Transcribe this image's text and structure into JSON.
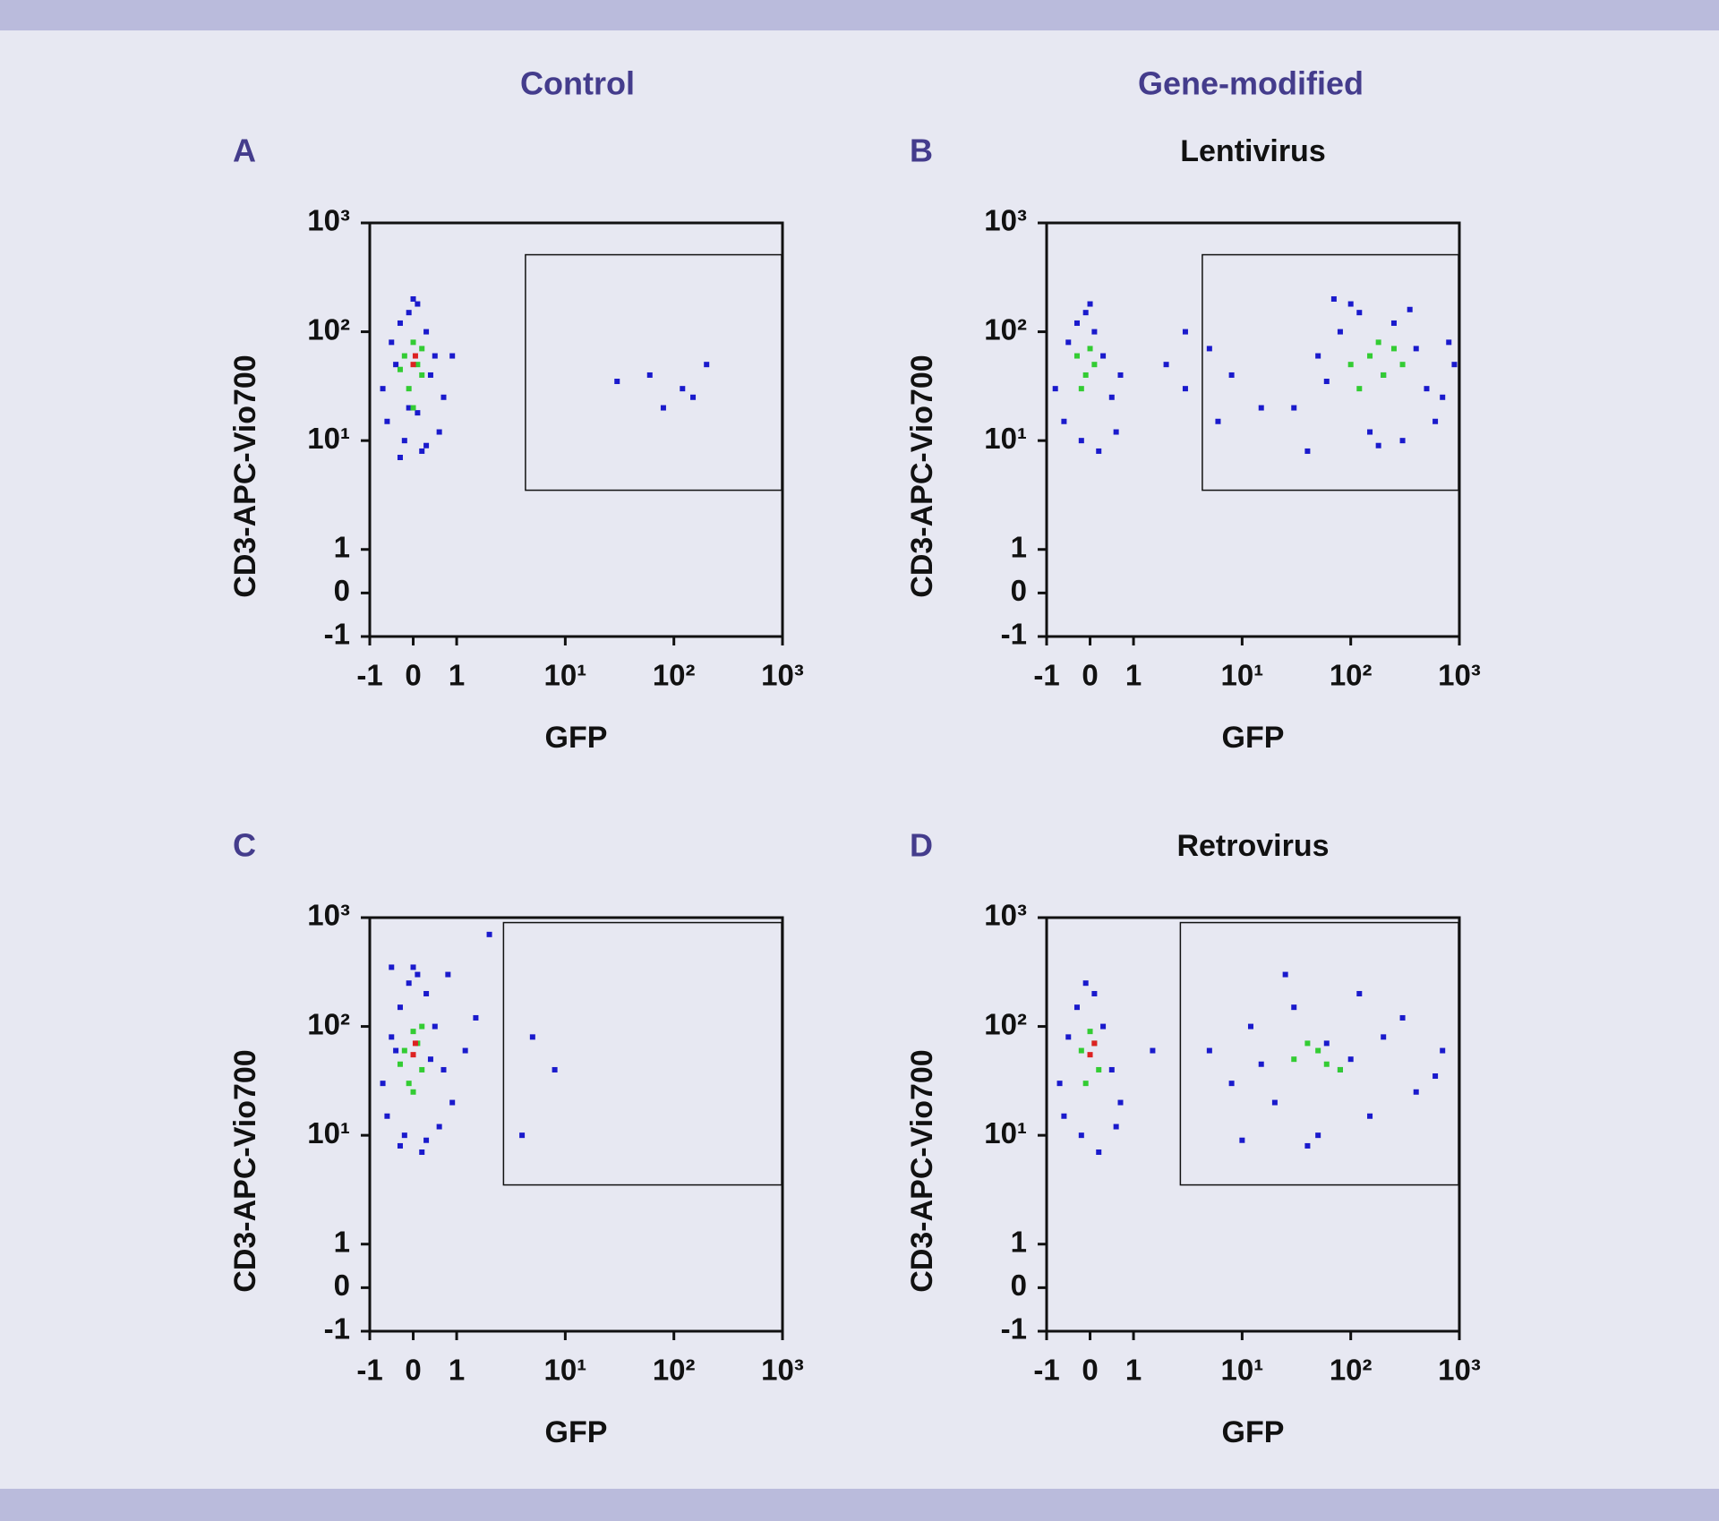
{
  "column_headers": [
    "Control",
    "Gene-modified"
  ],
  "chart_data": [
    {
      "type": "scatter",
      "panel": "A",
      "scale": "biexponential",
      "xlabel": "GFP",
      "ylabel": "CD3-APC-Vio700",
      "xlim": [
        -1,
        1000
      ],
      "ylim": [
        -1,
        1000
      ],
      "xticks": [
        -1,
        0,
        1,
        {
          "value": 10,
          "label": "10¹"
        },
        {
          "value": 100,
          "label": "10²"
        },
        {
          "value": 1000,
          "label": "10³"
        }
      ],
      "yticks": [
        -1,
        0,
        1,
        {
          "value": 10,
          "label": "10¹"
        },
        {
          "value": 100,
          "label": "10²"
        },
        {
          "value": 1000,
          "label": "10³"
        }
      ],
      "gate": {
        "x": [
          4.3,
          1000
        ],
        "y": [
          3.5,
          510
        ]
      },
      "series": [
        {
          "color": "#1a1acc",
          "x": [
            -0.7,
            -0.5,
            -0.3,
            -0.1,
            0.1,
            0.3,
            0.5,
            0.7,
            -0.6,
            -0.2,
            0.2,
            0.6,
            -0.4,
            0.4,
            0,
            -0.3,
            0.3,
            -0.1,
            0.1,
            0.9,
            60,
            120,
            200,
            80,
            150,
            30
          ],
          "values": [
            30,
            80,
            120,
            150,
            180,
            100,
            60,
            25,
            15,
            10,
            8,
            12,
            50,
            40,
            200,
            7,
            9,
            20,
            18,
            60,
            40,
            30,
            50,
            20,
            25,
            35
          ]
        },
        {
          "color": "#33cc33",
          "x": [
            -0.2,
            0,
            0.2,
            -0.1,
            0.1,
            0,
            -0.3,
            0.2
          ],
          "values": [
            60,
            80,
            40,
            30,
            50,
            20,
            45,
            70
          ]
        },
        {
          "color": "#dd2222",
          "x": [
            0,
            0.05
          ],
          "values": [
            50,
            60
          ]
        }
      ]
    },
    {
      "type": "scatter",
      "panel": "B",
      "title": "Lentivirus",
      "scale": "biexponential",
      "xlabel": "GFP",
      "ylabel": "CD3-APC-Vio700",
      "xlim": [
        -1,
        1000
      ],
      "ylim": [
        -1,
        1000
      ],
      "xticks": [
        -1,
        0,
        1,
        {
          "value": 10,
          "label": "10¹"
        },
        {
          "value": 100,
          "label": "10²"
        },
        {
          "value": 1000,
          "label": "10³"
        }
      ],
      "yticks": [
        -1,
        0,
        1,
        {
          "value": 10,
          "label": "10¹"
        },
        {
          "value": 100,
          "label": "10²"
        },
        {
          "value": 1000,
          "label": "10³"
        }
      ],
      "gate": {
        "x": [
          4.3,
          1000
        ],
        "y": [
          3.5,
          510
        ]
      },
      "series": [
        {
          "color": "#1a1acc",
          "x": [
            -0.8,
            -0.5,
            -0.3,
            -0.1,
            0.1,
            0.3,
            0.5,
            0.7,
            -0.6,
            -0.2,
            0.2,
            0.6,
            0,
            2,
            3,
            5,
            8,
            15,
            3,
            6,
            30,
            50,
            80,
            120,
            200,
            300,
            500,
            800,
            40,
            100,
            250,
            600,
            900,
            70,
            150,
            400,
            60,
            180,
            350,
            700
          ],
          "values": [
            30,
            80,
            120,
            150,
            100,
            60,
            25,
            40,
            15,
            10,
            8,
            12,
            180,
            50,
            30,
            70,
            40,
            20,
            100,
            15,
            20,
            60,
            100,
            150,
            40,
            10,
            30,
            80,
            8,
            180,
            120,
            15,
            50,
            200,
            12,
            70,
            35,
            9,
            160,
            25
          ]
        },
        {
          "color": "#33cc33",
          "x": [
            -0.3,
            -0.1,
            0.1,
            -0.2,
            0,
            100,
            150,
            200,
            250,
            120,
            300,
            180
          ],
          "values": [
            60,
            40,
            50,
            30,
            70,
            50,
            60,
            40,
            70,
            30,
            50,
            80
          ]
        }
      ]
    },
    {
      "type": "scatter",
      "panel": "C",
      "scale": "biexponential",
      "xlabel": "GFP",
      "ylabel": "CD3-APC-Vio700",
      "xlim": [
        -1,
        1000
      ],
      "ylim": [
        -1,
        1000
      ],
      "xticks": [
        -1,
        0,
        1,
        {
          "value": 10,
          "label": "10¹"
        },
        {
          "value": 100,
          "label": "10²"
        },
        {
          "value": 1000,
          "label": "10³"
        }
      ],
      "yticks": [
        -1,
        0,
        1,
        {
          "value": 10,
          "label": "10¹"
        },
        {
          "value": 100,
          "label": "10²"
        },
        {
          "value": 1000,
          "label": "10³"
        }
      ],
      "gate": {
        "x": [
          2.7,
          1000
        ],
        "y": [
          3.5,
          900
        ]
      },
      "series": [
        {
          "color": "#1a1acc",
          "x": [
            -0.7,
            -0.5,
            -0.3,
            -0.1,
            0.1,
            0.3,
            0.5,
            0.7,
            -0.6,
            -0.2,
            0.2,
            0.6,
            -0.4,
            0.4,
            0,
            -0.3,
            0.3,
            1.2,
            1.5,
            0.9,
            5,
            8,
            4,
            2,
            0.8,
            -0.5
          ],
          "values": [
            30,
            80,
            150,
            250,
            300,
            200,
            100,
            40,
            15,
            10,
            7,
            12,
            60,
            50,
            350,
            8,
            9,
            60,
            120,
            20,
            80,
            40,
            10,
            700,
            300,
            350
          ]
        },
        {
          "color": "#33cc33",
          "x": [
            -0.2,
            0,
            0.2,
            -0.1,
            0.1,
            0,
            -0.3,
            0.2
          ],
          "values": [
            60,
            90,
            40,
            30,
            70,
            25,
            45,
            100
          ]
        },
        {
          "color": "#dd2222",
          "x": [
            0,
            0.05
          ],
          "values": [
            55,
            70
          ]
        }
      ]
    },
    {
      "type": "scatter",
      "panel": "D",
      "title": "Retrovirus",
      "scale": "biexponential",
      "xlabel": "GFP",
      "ylabel": "CD3-APC-Vio700",
      "xlim": [
        -1,
        1000
      ],
      "ylim": [
        -1,
        1000
      ],
      "xticks": [
        -1,
        0,
        1,
        {
          "value": 10,
          "label": "10¹"
        },
        {
          "value": 100,
          "label": "10²"
        },
        {
          "value": 1000,
          "label": "10³"
        }
      ],
      "yticks": [
        -1,
        0,
        1,
        {
          "value": 10,
          "label": "10¹"
        },
        {
          "value": 100,
          "label": "10²"
        },
        {
          "value": 1000,
          "label": "10³"
        }
      ],
      "gate": {
        "x": [
          2.7,
          1000
        ],
        "y": [
          3.5,
          900
        ]
      },
      "series": [
        {
          "color": "#1a1acc",
          "x": [
            -0.7,
            -0.5,
            -0.3,
            -0.1,
            0.1,
            0.3,
            0.5,
            0.7,
            -0.6,
            -0.2,
            0.2,
            0.6,
            1.5,
            5,
            8,
            12,
            20,
            30,
            50,
            80,
            120,
            200,
            400,
            700,
            10,
            25,
            60,
            150,
            300,
            600,
            15,
            40,
            100
          ],
          "values": [
            30,
            80,
            150,
            250,
            200,
            100,
            40,
            20,
            15,
            10,
            7,
            12,
            60,
            60,
            30,
            100,
            20,
            150,
            10,
            40,
            200,
            80,
            25,
            60,
            9,
            300,
            70,
            15,
            120,
            35,
            45,
            8,
            50
          ]
        },
        {
          "color": "#33cc33",
          "x": [
            -0.2,
            0,
            0.2,
            -0.1,
            0.1,
            30,
            50,
            80,
            40,
            60
          ],
          "values": [
            60,
            90,
            40,
            30,
            70,
            50,
            60,
            40,
            70,
            45
          ]
        },
        {
          "color": "#dd2222",
          "x": [
            0,
            0.1
          ],
          "values": [
            55,
            70
          ]
        }
      ]
    }
  ]
}
